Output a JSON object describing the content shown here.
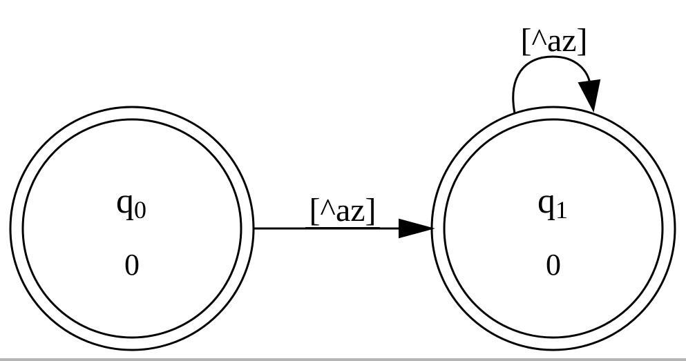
{
  "states": [
    {
      "id": "q0",
      "name": "q",
      "subscript": "0",
      "value": "0",
      "accepting": true
    },
    {
      "id": "q1",
      "name": "q",
      "subscript": "1",
      "value": "0",
      "accepting": true
    }
  ],
  "edges": [
    {
      "from": "q0",
      "to": "q1",
      "label": "[^az]"
    },
    {
      "from": "q1",
      "to": "q1",
      "label": "[^az]"
    }
  ],
  "colors": {
    "stroke": "#000000",
    "background": "#ffffff"
  }
}
